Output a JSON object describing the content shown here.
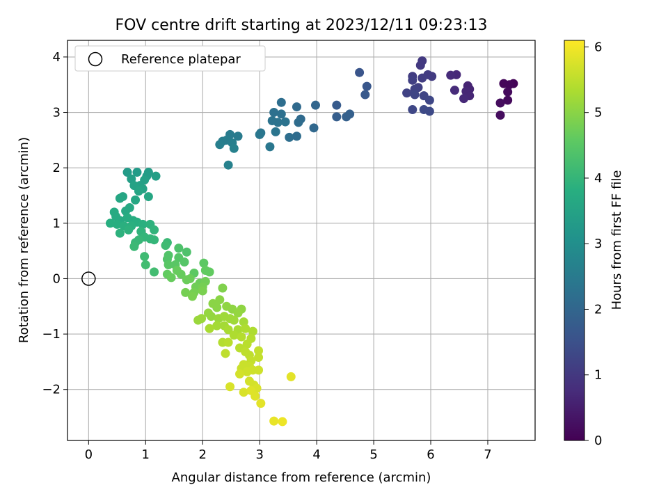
{
  "chart_data": {
    "type": "scatter",
    "title": "FOV centre drift starting at 2023/12/11 09:23:13",
    "xlabel": "Angular distance from reference (arcmin)",
    "ylabel": "Rotation from reference (arcmin)",
    "xlim": [
      -0.37,
      7.83
    ],
    "ylim": [
      -2.92,
      4.3
    ],
    "xticks": [
      0,
      1,
      2,
      3,
      4,
      5,
      6,
      7
    ],
    "yticks": [
      -2,
      -1,
      0,
      1,
      2,
      3,
      4
    ],
    "grid": true,
    "legend": {
      "position": "top-left",
      "entries": [
        "Reference platepar"
      ]
    },
    "reference_point": {
      "x": 0,
      "y": 0
    },
    "colorbar": {
      "label": "Hours from first FF file",
      "range": [
        0,
        6.1
      ],
      "ticks": [
        0,
        1,
        2,
        3,
        4,
        5,
        6
      ],
      "colormap": "viridis"
    },
    "points": [
      {
        "x": 7.45,
        "y": 3.52,
        "c": 0.05
      },
      {
        "x": 7.38,
        "y": 3.5,
        "c": 0.1
      },
      {
        "x": 7.28,
        "y": 3.52,
        "c": 0.1
      },
      {
        "x": 7.35,
        "y": 3.37,
        "c": 0.15
      },
      {
        "x": 7.35,
        "y": 3.22,
        "c": 0.15
      },
      {
        "x": 7.22,
        "y": 3.17,
        "c": 0.2
      },
      {
        "x": 7.22,
        "y": 2.95,
        "c": 0.2
      },
      {
        "x": 6.65,
        "y": 3.48,
        "c": 0.6
      },
      {
        "x": 6.68,
        "y": 3.42,
        "c": 0.6
      },
      {
        "x": 6.62,
        "y": 3.38,
        "c": 0.65
      },
      {
        "x": 6.68,
        "y": 3.3,
        "c": 0.65
      },
      {
        "x": 6.58,
        "y": 3.25,
        "c": 0.7
      },
      {
        "x": 6.45,
        "y": 3.68,
        "c": 0.7
      },
      {
        "x": 6.35,
        "y": 3.67,
        "c": 0.75
      },
      {
        "x": 6.42,
        "y": 3.4,
        "c": 0.75
      },
      {
        "x": 5.85,
        "y": 3.93,
        "c": 1.0
      },
      {
        "x": 5.82,
        "y": 3.85,
        "c": 1.0
      },
      {
        "x": 5.95,
        "y": 3.68,
        "c": 1.05
      },
      {
        "x": 6.02,
        "y": 3.65,
        "c": 1.05
      },
      {
        "x": 5.85,
        "y": 3.62,
        "c": 1.1
      },
      {
        "x": 5.68,
        "y": 3.65,
        "c": 1.1
      },
      {
        "x": 5.68,
        "y": 3.58,
        "c": 1.15
      },
      {
        "x": 5.78,
        "y": 3.45,
        "c": 1.15
      },
      {
        "x": 5.72,
        "y": 3.42,
        "c": 1.2
      },
      {
        "x": 5.58,
        "y": 3.35,
        "c": 1.2
      },
      {
        "x": 5.72,
        "y": 3.32,
        "c": 1.25
      },
      {
        "x": 5.88,
        "y": 3.3,
        "c": 1.25
      },
      {
        "x": 5.98,
        "y": 3.22,
        "c": 1.3
      },
      {
        "x": 5.68,
        "y": 3.05,
        "c": 1.3
      },
      {
        "x": 5.88,
        "y": 3.05,
        "c": 1.35
      },
      {
        "x": 5.98,
        "y": 3.02,
        "c": 1.35
      },
      {
        "x": 4.75,
        "y": 3.72,
        "c": 1.6
      },
      {
        "x": 4.88,
        "y": 3.47,
        "c": 1.65
      },
      {
        "x": 4.85,
        "y": 3.32,
        "c": 1.7
      },
      {
        "x": 4.35,
        "y": 3.13,
        "c": 1.75
      },
      {
        "x": 4.35,
        "y": 2.92,
        "c": 1.8
      },
      {
        "x": 4.52,
        "y": 2.92,
        "c": 1.85
      },
      {
        "x": 4.58,
        "y": 2.97,
        "c": 1.85
      },
      {
        "x": 3.98,
        "y": 3.13,
        "c": 2.0
      },
      {
        "x": 3.95,
        "y": 2.72,
        "c": 2.05
      },
      {
        "x": 3.65,
        "y": 3.1,
        "c": 2.1
      },
      {
        "x": 3.72,
        "y": 2.88,
        "c": 2.1
      },
      {
        "x": 3.68,
        "y": 2.82,
        "c": 2.15
      },
      {
        "x": 3.65,
        "y": 2.57,
        "c": 2.15
      },
      {
        "x": 3.52,
        "y": 2.55,
        "c": 2.2
      },
      {
        "x": 3.38,
        "y": 3.18,
        "c": 2.2
      },
      {
        "x": 3.38,
        "y": 2.97,
        "c": 2.25
      },
      {
        "x": 3.25,
        "y": 3.0,
        "c": 2.25
      },
      {
        "x": 3.45,
        "y": 2.83,
        "c": 2.3
      },
      {
        "x": 3.32,
        "y": 2.82,
        "c": 2.3
      },
      {
        "x": 3.22,
        "y": 2.85,
        "c": 2.3
      },
      {
        "x": 3.28,
        "y": 2.65,
        "c": 2.35
      },
      {
        "x": 3.02,
        "y": 2.63,
        "c": 2.35
      },
      {
        "x": 3.0,
        "y": 2.6,
        "c": 2.4
      },
      {
        "x": 3.18,
        "y": 2.38,
        "c": 2.4
      },
      {
        "x": 2.48,
        "y": 2.6,
        "c": 2.5
      },
      {
        "x": 2.62,
        "y": 2.57,
        "c": 2.5
      },
      {
        "x": 2.42,
        "y": 2.5,
        "c": 2.55
      },
      {
        "x": 2.35,
        "y": 2.48,
        "c": 2.55
      },
      {
        "x": 2.52,
        "y": 2.45,
        "c": 2.6
      },
      {
        "x": 2.3,
        "y": 2.42,
        "c": 2.6
      },
      {
        "x": 2.55,
        "y": 2.35,
        "c": 2.65
      },
      {
        "x": 2.45,
        "y": 2.05,
        "c": 2.65
      },
      {
        "x": 0.68,
        "y": 1.92,
        "c": 3.3
      },
      {
        "x": 0.85,
        "y": 1.92,
        "c": 3.3
      },
      {
        "x": 1.05,
        "y": 1.92,
        "c": 3.35
      },
      {
        "x": 1.02,
        "y": 1.85,
        "c": 3.35
      },
      {
        "x": 1.18,
        "y": 1.85,
        "c": 3.4
      },
      {
        "x": 0.75,
        "y": 1.8,
        "c": 3.4
      },
      {
        "x": 0.98,
        "y": 1.78,
        "c": 3.45
      },
      {
        "x": 0.9,
        "y": 1.68,
        "c": 3.45
      },
      {
        "x": 0.8,
        "y": 1.68,
        "c": 3.5
      },
      {
        "x": 0.95,
        "y": 1.62,
        "c": 3.5
      },
      {
        "x": 0.88,
        "y": 1.58,
        "c": 3.55
      },
      {
        "x": 0.6,
        "y": 1.48,
        "c": 3.55
      },
      {
        "x": 0.55,
        "y": 1.45,
        "c": 3.6
      },
      {
        "x": 1.05,
        "y": 1.48,
        "c": 3.6
      },
      {
        "x": 0.82,
        "y": 1.42,
        "c": 3.6
      },
      {
        "x": 0.72,
        "y": 1.28,
        "c": 3.65
      },
      {
        "x": 0.65,
        "y": 1.22,
        "c": 3.65
      },
      {
        "x": 0.45,
        "y": 1.2,
        "c": 3.7
      },
      {
        "x": 0.48,
        "y": 1.12,
        "c": 3.7
      },
      {
        "x": 0.55,
        "y": 1.05,
        "c": 3.7
      },
      {
        "x": 0.68,
        "y": 1.1,
        "c": 3.75
      },
      {
        "x": 0.78,
        "y": 1.05,
        "c": 3.75
      },
      {
        "x": 0.85,
        "y": 1.02,
        "c": 3.8
      },
      {
        "x": 0.38,
        "y": 1.0,
        "c": 3.8
      },
      {
        "x": 0.5,
        "y": 0.98,
        "c": 3.8
      },
      {
        "x": 0.62,
        "y": 0.95,
        "c": 3.85
      },
      {
        "x": 0.75,
        "y": 0.95,
        "c": 3.85
      },
      {
        "x": 0.95,
        "y": 0.98,
        "c": 3.85
      },
      {
        "x": 1.08,
        "y": 0.98,
        "c": 3.9
      },
      {
        "x": 0.55,
        "y": 0.82,
        "c": 3.9
      },
      {
        "x": 0.7,
        "y": 0.88,
        "c": 3.9
      },
      {
        "x": 0.92,
        "y": 0.85,
        "c": 3.95
      },
      {
        "x": 1.15,
        "y": 0.88,
        "c": 3.95
      },
      {
        "x": 0.98,
        "y": 0.75,
        "c": 4.0
      },
      {
        "x": 1.08,
        "y": 0.72,
        "c": 4.0
      },
      {
        "x": 1.15,
        "y": 0.7,
        "c": 4.0
      },
      {
        "x": 0.88,
        "y": 0.7,
        "c": 4.05
      },
      {
        "x": 0.82,
        "y": 0.65,
        "c": 4.05
      },
      {
        "x": 0.8,
        "y": 0.58,
        "c": 4.1
      },
      {
        "x": 1.38,
        "y": 0.65,
        "c": 4.1
      },
      {
        "x": 1.35,
        "y": 0.6,
        "c": 4.15
      },
      {
        "x": 0.98,
        "y": 0.4,
        "c": 4.15
      },
      {
        "x": 1.0,
        "y": 0.25,
        "c": 4.2
      },
      {
        "x": 1.15,
        "y": 0.12,
        "c": 4.2
      },
      {
        "x": 1.58,
        "y": 0.55,
        "c": 4.35
      },
      {
        "x": 1.72,
        "y": 0.48,
        "c": 4.35
      },
      {
        "x": 1.4,
        "y": 0.42,
        "c": 4.4
      },
      {
        "x": 1.38,
        "y": 0.35,
        "c": 4.4
      },
      {
        "x": 1.58,
        "y": 0.38,
        "c": 4.45
      },
      {
        "x": 1.68,
        "y": 0.3,
        "c": 4.45
      },
      {
        "x": 1.4,
        "y": 0.25,
        "c": 4.5
      },
      {
        "x": 1.52,
        "y": 0.25,
        "c": 4.5
      },
      {
        "x": 1.85,
        "y": 0.1,
        "c": 4.55
      },
      {
        "x": 2.02,
        "y": 0.28,
        "c": 4.55
      },
      {
        "x": 2.05,
        "y": 0.15,
        "c": 4.6
      },
      {
        "x": 2.12,
        "y": 0.12,
        "c": 4.6
      },
      {
        "x": 1.38,
        "y": 0.08,
        "c": 4.6
      },
      {
        "x": 1.45,
        "y": 0.02,
        "c": 4.65
      },
      {
        "x": 1.55,
        "y": 0.15,
        "c": 4.65
      },
      {
        "x": 1.62,
        "y": 0.08,
        "c": 4.65
      },
      {
        "x": 1.78,
        "y": 0.0,
        "c": 4.7
      },
      {
        "x": 1.72,
        "y": -0.02,
        "c": 4.7
      },
      {
        "x": 1.95,
        "y": -0.08,
        "c": 4.7
      },
      {
        "x": 2.05,
        "y": -0.05,
        "c": 4.75
      },
      {
        "x": 1.88,
        "y": -0.15,
        "c": 4.75
      },
      {
        "x": 2.0,
        "y": -0.15,
        "c": 4.8
      },
      {
        "x": 1.7,
        "y": -0.25,
        "c": 4.8
      },
      {
        "x": 1.85,
        "y": -0.25,
        "c": 4.8
      },
      {
        "x": 1.82,
        "y": -0.32,
        "c": 4.85
      },
      {
        "x": 2.0,
        "y": -0.22,
        "c": 4.85
      },
      {
        "x": 2.35,
        "y": -0.17,
        "c": 4.9
      },
      {
        "x": 2.18,
        "y": -0.45,
        "c": 5.0
      },
      {
        "x": 2.3,
        "y": -0.38,
        "c": 5.0
      },
      {
        "x": 2.25,
        "y": -0.52,
        "c": 5.0
      },
      {
        "x": 2.42,
        "y": -0.5,
        "c": 5.05
      },
      {
        "x": 2.52,
        "y": -0.55,
        "c": 5.05
      },
      {
        "x": 2.68,
        "y": -0.55,
        "c": 5.05
      },
      {
        "x": 2.62,
        "y": -0.62,
        "c": 5.1
      },
      {
        "x": 2.1,
        "y": -0.62,
        "c": 5.1
      },
      {
        "x": 2.15,
        "y": -0.68,
        "c": 5.1
      },
      {
        "x": 1.98,
        "y": -0.72,
        "c": 5.15
      },
      {
        "x": 1.92,
        "y": -0.75,
        "c": 5.15
      },
      {
        "x": 2.28,
        "y": -0.72,
        "c": 5.15
      },
      {
        "x": 2.38,
        "y": -0.68,
        "c": 5.2
      },
      {
        "x": 2.48,
        "y": -0.72,
        "c": 5.2
      },
      {
        "x": 2.55,
        "y": -0.75,
        "c": 5.2
      },
      {
        "x": 2.72,
        "y": -0.78,
        "c": 5.25
      },
      {
        "x": 2.25,
        "y": -0.85,
        "c": 5.25
      },
      {
        "x": 2.38,
        "y": -0.85,
        "c": 5.25
      },
      {
        "x": 2.12,
        "y": -0.9,
        "c": 5.3
      },
      {
        "x": 2.45,
        "y": -0.92,
        "c": 5.3
      },
      {
        "x": 2.62,
        "y": -0.92,
        "c": 5.3
      },
      {
        "x": 2.75,
        "y": -0.9,
        "c": 5.35
      },
      {
        "x": 2.88,
        "y": -0.95,
        "c": 5.35
      },
      {
        "x": 2.55,
        "y": -1.02,
        "c": 5.35
      },
      {
        "x": 2.68,
        "y": -1.05,
        "c": 5.4
      },
      {
        "x": 2.85,
        "y": -1.08,
        "c": 5.4
      },
      {
        "x": 2.35,
        "y": -1.15,
        "c": 5.4
      },
      {
        "x": 2.45,
        "y": -1.15,
        "c": 5.45
      },
      {
        "x": 2.78,
        "y": -1.18,
        "c": 5.45
      },
      {
        "x": 2.65,
        "y": -1.25,
        "c": 5.45
      },
      {
        "x": 2.75,
        "y": -1.32,
        "c": 5.5
      },
      {
        "x": 2.4,
        "y": -1.35,
        "c": 5.5
      },
      {
        "x": 2.82,
        "y": -1.38,
        "c": 5.5
      },
      {
        "x": 2.98,
        "y": -1.3,
        "c": 5.55
      },
      {
        "x": 2.98,
        "y": -1.42,
        "c": 5.55
      },
      {
        "x": 2.85,
        "y": -1.48,
        "c": 5.55
      },
      {
        "x": 2.72,
        "y": -1.55,
        "c": 5.6
      },
      {
        "x": 2.82,
        "y": -1.58,
        "c": 5.6
      },
      {
        "x": 2.68,
        "y": -1.62,
        "c": 5.6
      },
      {
        "x": 2.88,
        "y": -1.65,
        "c": 5.65
      },
      {
        "x": 2.98,
        "y": -1.65,
        "c": 5.65
      },
      {
        "x": 2.78,
        "y": -1.68,
        "c": 5.65
      },
      {
        "x": 2.65,
        "y": -1.72,
        "c": 5.7
      },
      {
        "x": 2.82,
        "y": -1.85,
        "c": 5.7
      },
      {
        "x": 2.9,
        "y": -1.92,
        "c": 5.7
      },
      {
        "x": 2.95,
        "y": -1.98,
        "c": 5.75
      },
      {
        "x": 2.48,
        "y": -1.95,
        "c": 5.75
      },
      {
        "x": 2.72,
        "y": -2.05,
        "c": 5.75
      },
      {
        "x": 2.85,
        "y": -2.02,
        "c": 5.8
      },
      {
        "x": 2.92,
        "y": -2.12,
        "c": 5.8
      },
      {
        "x": 3.02,
        "y": -2.25,
        "c": 5.85
      },
      {
        "x": 3.55,
        "y": -1.77,
        "c": 5.85
      },
      {
        "x": 3.25,
        "y": -2.57,
        "c": 5.9
      },
      {
        "x": 3.4,
        "y": -2.58,
        "c": 5.95
      }
    ]
  }
}
